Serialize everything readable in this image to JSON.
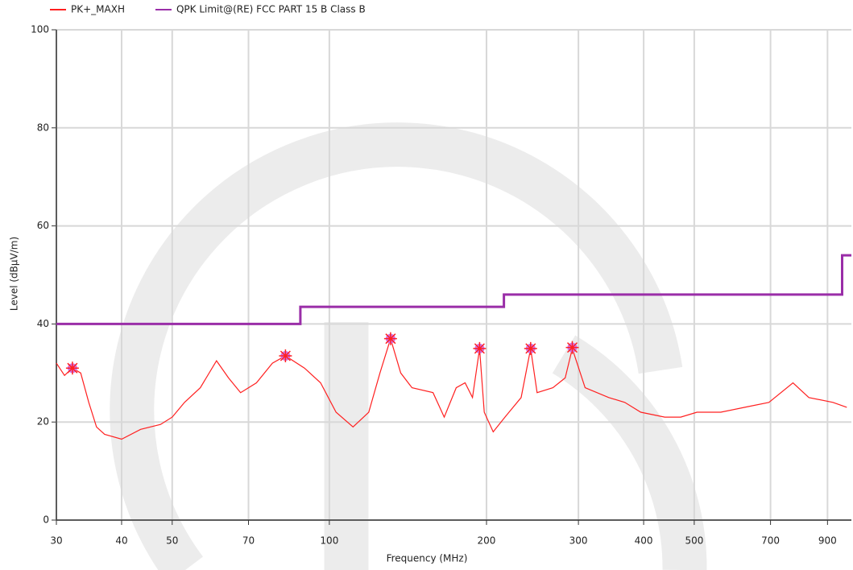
{
  "chart_data": {
    "type": "line",
    "xlabel": "Frequency (MHz)",
    "ylabel": "Level (dBµV/m)",
    "xscale": "log",
    "xlim": [
      30,
      1000
    ],
    "ylim": [
      0,
      100
    ],
    "xticks": [
      30,
      40,
      50,
      70,
      100,
      200,
      300,
      400,
      500,
      700,
      900
    ],
    "yticks": [
      0,
      20,
      40,
      60,
      80,
      100
    ],
    "grid": true,
    "legend": "top",
    "series": [
      {
        "name": "PK+_MAXH",
        "color": "#ff2020",
        "x": [
          30,
          31.1,
          32.2,
          33.4,
          34.6,
          35.8,
          37.1,
          40,
          43.5,
          47.5,
          50,
          52.8,
          56.6,
          60.8,
          64.1,
          67.6,
          72.5,
          77.8,
          82.4,
          89.6,
          96.2,
          103,
          111,
          119,
          125,
          131,
          137,
          144,
          158,
          166,
          175,
          182,
          188,
          194,
          198,
          206,
          217,
          233,
          243,
          250,
          268,
          283,
          292,
          309,
          343,
          368,
          395,
          439,
          471,
          506,
          533,
          562,
          625,
          695,
          773,
          829,
          922,
          980
        ],
        "values": [
          32,
          29.5,
          31,
          30,
          24,
          19,
          17.5,
          16.5,
          18.5,
          19.5,
          21,
          24,
          27,
          32.5,
          29,
          26,
          28,
          32,
          33.5,
          31,
          28,
          22,
          19,
          22,
          30,
          37,
          30,
          27,
          26,
          21,
          27,
          28,
          25,
          35,
          22,
          18,
          21,
          25,
          35,
          26,
          27,
          29,
          35,
          27,
          25,
          24,
          22,
          21,
          21,
          22,
          22,
          22,
          23,
          24,
          28,
          25,
          24,
          23
        ]
      },
      {
        "name": "QPK Limit@(RE) FCC PART 15 B Class B",
        "color": "#9a2ea8",
        "x": [
          30,
          88,
          88,
          216,
          216,
          960,
          960,
          1000
        ],
        "values": [
          40,
          40,
          43.5,
          43.5,
          46,
          46,
          54,
          54
        ]
      }
    ],
    "markers": {
      "color": "#ff2020",
      "fill": "#d070e8",
      "x": [
        32.2,
        82.4,
        131,
        194,
        243,
        292
      ],
      "values": [
        31,
        33.5,
        37,
        35,
        35,
        35.2
      ]
    }
  }
}
